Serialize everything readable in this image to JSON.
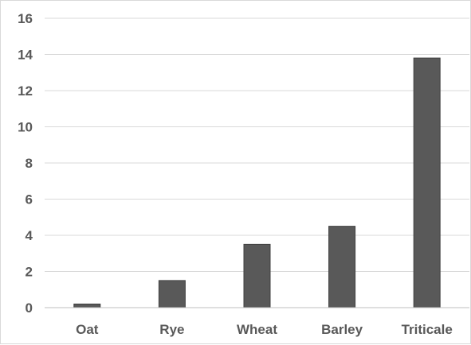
{
  "chart_data": {
    "type": "bar",
    "categories": [
      "Oat",
      "Rye",
      "Wheat",
      "Barley",
      "Triticale"
    ],
    "values": [
      0.2,
      1.5,
      3.5,
      4.5,
      13.8
    ],
    "title": "",
    "xlabel": "",
    "ylabel": "",
    "ylim": [
      0,
      16
    ],
    "yticks": [
      "0",
      "2",
      "4",
      "6",
      "8",
      "10",
      "12",
      "14",
      "16"
    ],
    "grid": true,
    "legend": "none",
    "colors": {
      "bar": "#595959",
      "bar_edge": "#404040",
      "grid": "#d9d9d9",
      "axis": "#bfbfbf",
      "text": "#595959"
    }
  }
}
